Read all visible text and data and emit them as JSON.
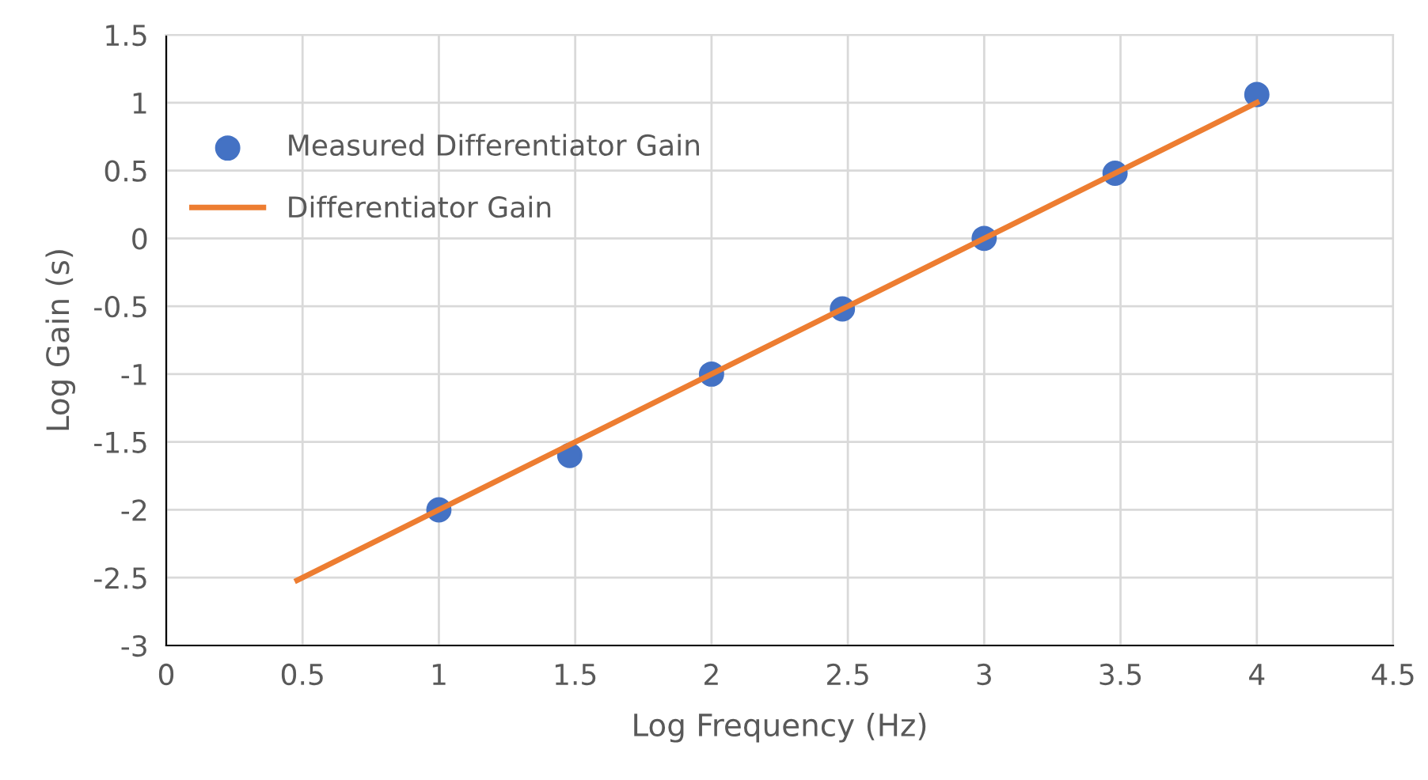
{
  "chart_data": {
    "type": "scatter",
    "xlabel": "Log Frequency (Hz)",
    "ylabel": "Log Gain (s)",
    "xlim": [
      0,
      4.5
    ],
    "xticks": [
      0,
      0.5,
      1,
      1.5,
      2,
      2.5,
      3,
      3.5,
      4,
      4.5
    ],
    "ylim": [
      -3,
      1.5
    ],
    "yticks": [
      -3,
      -2.5,
      -2,
      -1.5,
      -1,
      -0.5,
      0,
      0.5,
      1,
      1.5
    ],
    "grid": true,
    "legend": "top left",
    "series": [
      {
        "name": "Measured Differentiator Gain",
        "color": "#4472c4",
        "marker": "circle",
        "x": [
          1,
          1.48,
          2,
          2.48,
          3,
          3.48,
          4
        ],
        "values": [
          -2,
          -1.6,
          -1,
          -0.52,
          0,
          0.48,
          1.06
        ]
      },
      {
        "name": "Differentiator Gain",
        "type": "line",
        "color": "#ed7d31",
        "marker": "none",
        "line_style": "solid",
        "x": [
          0.48,
          1,
          2,
          3,
          4
        ],
        "values": [
          -2.52,
          -2,
          -1,
          0,
          1
        ]
      }
    ]
  }
}
